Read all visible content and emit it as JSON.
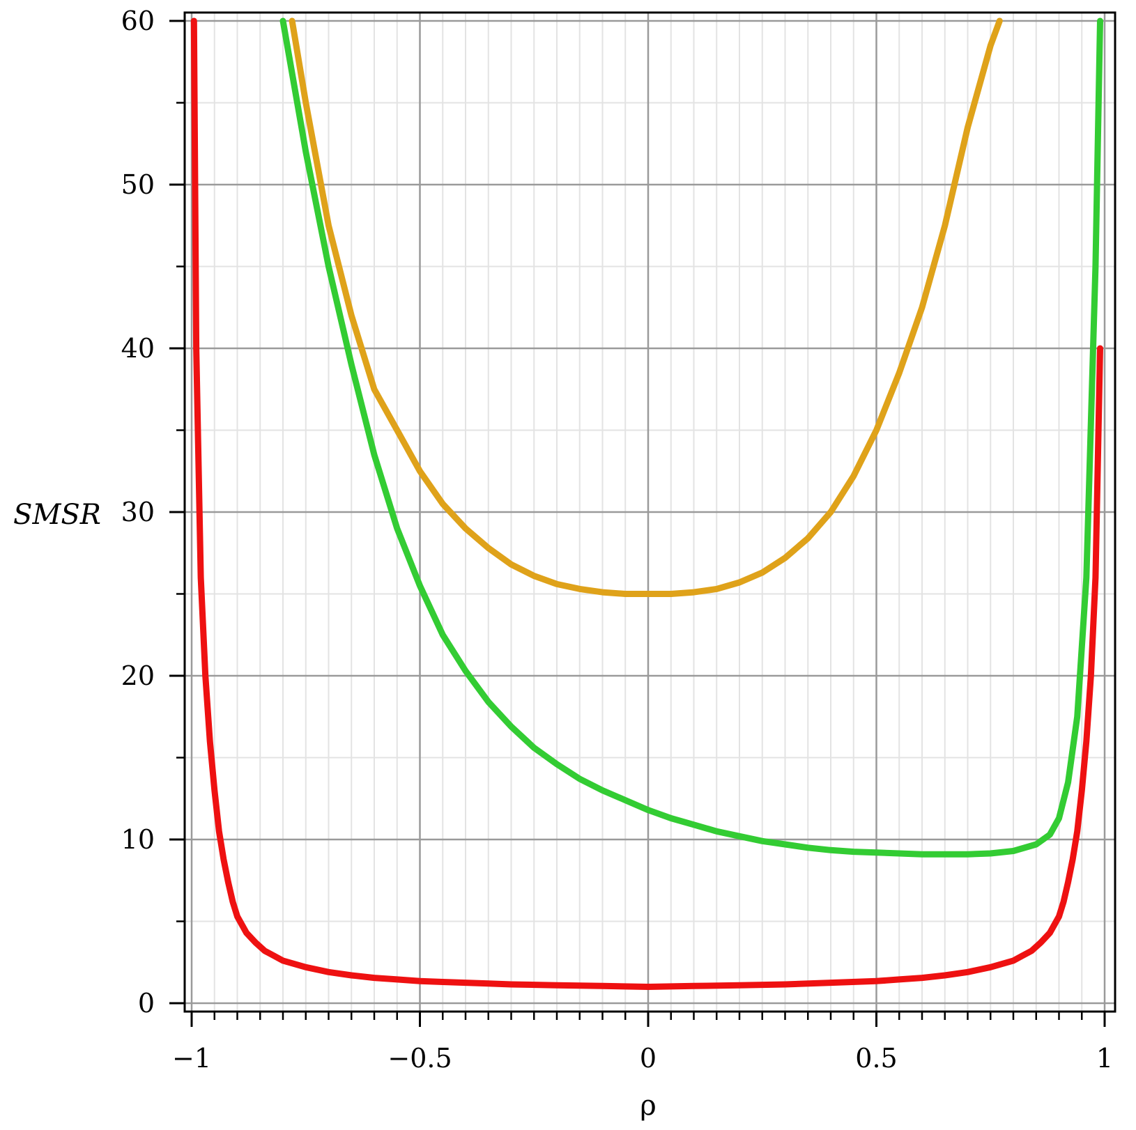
{
  "chart_data": {
    "type": "line",
    "title": "",
    "xlabel": "ρ",
    "ylabel": "SMSR",
    "xlim": [
      -1,
      1
    ],
    "ylim": [
      0,
      60
    ],
    "grid": true,
    "legend": "none",
    "x_ticks": [
      {
        "value": -1,
        "label": "−1"
      },
      {
        "value": -0.5,
        "label": "−0.5"
      },
      {
        "value": 0,
        "label": "0"
      },
      {
        "value": 0.5,
        "label": "0.5"
      },
      {
        "value": 1,
        "label": "1"
      }
    ],
    "y_ticks": [
      {
        "value": 0,
        "label": "0"
      },
      {
        "value": 10,
        "label": "10"
      },
      {
        "value": 20,
        "label": "20"
      },
      {
        "value": 30,
        "label": "30"
      },
      {
        "value": 40,
        "label": "40"
      },
      {
        "value": 50,
        "label": "50"
      },
      {
        "value": 60,
        "label": "60"
      }
    ],
    "series": [
      {
        "color": "#dfa21a",
        "x": [
          -0.78,
          -0.75,
          -0.7,
          -0.65,
          -0.6,
          -0.55,
          -0.5,
          -0.45,
          -0.4,
          -0.35,
          -0.3,
          -0.25,
          -0.2,
          -0.15,
          -0.1,
          -0.05,
          0,
          0.05,
          0.1,
          0.15,
          0.2,
          0.25,
          0.3,
          0.35,
          0.4,
          0.45,
          0.5,
          0.55,
          0.6,
          0.65,
          0.7,
          0.75,
          0.77
        ],
        "y": [
          60,
          55,
          47.5,
          42,
          37.5,
          35,
          32.5,
          30.5,
          29,
          27.8,
          26.8,
          26.1,
          25.6,
          25.3,
          25.1,
          25.0,
          25.0,
          25.0,
          25.1,
          25.3,
          25.7,
          26.3,
          27.2,
          28.4,
          30.0,
          32.2,
          35.0,
          38.5,
          42.5,
          47.5,
          53.5,
          58.5,
          60
        ]
      },
      {
        "color": "#33cc33",
        "x": [
          -0.8,
          -0.75,
          -0.7,
          -0.65,
          -0.6,
          -0.55,
          -0.5,
          -0.45,
          -0.4,
          -0.35,
          -0.3,
          -0.25,
          -0.2,
          -0.15,
          -0.1,
          -0.05,
          0,
          0.05,
          0.1,
          0.15,
          0.2,
          0.25,
          0.3,
          0.35,
          0.4,
          0.45,
          0.5,
          0.55,
          0.6,
          0.65,
          0.7,
          0.75,
          0.8,
          0.85,
          0.88,
          0.9,
          0.92,
          0.94,
          0.96,
          0.98,
          0.99
        ],
        "y": [
          60,
          52,
          45,
          39,
          33.5,
          29,
          25.5,
          22.5,
          20.3,
          18.4,
          16.9,
          15.6,
          14.6,
          13.7,
          13.0,
          12.4,
          11.8,
          11.3,
          10.9,
          10.5,
          10.2,
          9.9,
          9.7,
          9.5,
          9.35,
          9.25,
          9.2,
          9.15,
          9.1,
          9.1,
          9.1,
          9.15,
          9.3,
          9.7,
          10.3,
          11.3,
          13.5,
          17.5,
          26.0,
          45.0,
          60
        ]
      },
      {
        "color": "#ee1111",
        "x": [
          -0.995,
          -0.99,
          -0.98,
          -0.97,
          -0.96,
          -0.95,
          -0.94,
          -0.93,
          -0.92,
          -0.91,
          -0.9,
          -0.88,
          -0.86,
          -0.84,
          -0.82,
          -0.8,
          -0.75,
          -0.7,
          -0.65,
          -0.6,
          -0.55,
          -0.5,
          -0.45,
          -0.4,
          -0.35,
          -0.3,
          -0.2,
          -0.1,
          0,
          0.1,
          0.2,
          0.3,
          0.4,
          0.5,
          0.55,
          0.6,
          0.65,
          0.7,
          0.75,
          0.8,
          0.82,
          0.84,
          0.86,
          0.88,
          0.9,
          0.91,
          0.92,
          0.93,
          0.94,
          0.95,
          0.96,
          0.97,
          0.98,
          0.99
        ],
        "y": [
          60,
          40,
          26,
          20,
          16,
          13,
          10.5,
          8.8,
          7.4,
          6.2,
          5.3,
          4.3,
          3.7,
          3.2,
          2.9,
          2.6,
          2.2,
          1.9,
          1.7,
          1.55,
          1.45,
          1.35,
          1.3,
          1.25,
          1.2,
          1.15,
          1.1,
          1.05,
          1.0,
          1.05,
          1.1,
          1.15,
          1.25,
          1.35,
          1.45,
          1.55,
          1.7,
          1.9,
          2.2,
          2.6,
          2.9,
          3.2,
          3.7,
          4.3,
          5.3,
          6.2,
          7.4,
          8.8,
          10.5,
          13,
          16,
          20,
          26,
          40
        ]
      }
    ]
  }
}
